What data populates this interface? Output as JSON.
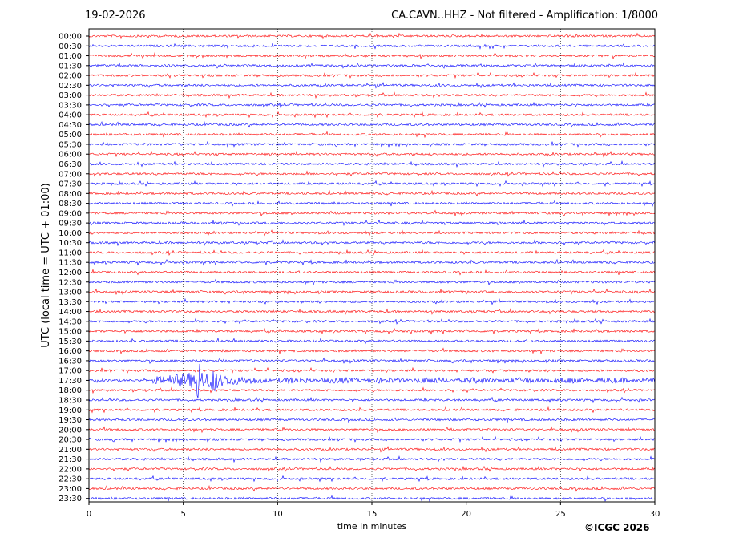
{
  "header": {
    "date": "19-02-2026",
    "title": "CA.CAVN..HHZ - Not filtered - Amplification: 1/8000"
  },
  "footer": {
    "copyright": "©ICGC 2026"
  },
  "chart_data": {
    "type": "line",
    "title": "CA.CAVN..HHZ - Not filtered - Amplification: 1/8000",
    "xlabel": "time in minutes",
    "ylabel": "UTC (local time = UTC + 01:00)",
    "xlim": [
      0,
      30
    ],
    "xticks": [
      0,
      5,
      10,
      15,
      20,
      25,
      30
    ],
    "vertical_gridlines": [
      5,
      10,
      15,
      20,
      25
    ],
    "rows": [
      "00:00",
      "00:30",
      "01:00",
      "01:30",
      "02:00",
      "02:30",
      "03:00",
      "03:30",
      "04:00",
      "04:30",
      "05:00",
      "05:30",
      "06:00",
      "06:30",
      "07:00",
      "07:30",
      "08:00",
      "08:30",
      "09:00",
      "09:30",
      "10:00",
      "10:30",
      "11:00",
      "11:30",
      "12:00",
      "12:30",
      "13:00",
      "13:30",
      "14:00",
      "14:30",
      "15:00",
      "15:30",
      "16:00",
      "16:30",
      "17:00",
      "17:30",
      "18:00",
      "18:30",
      "19:00",
      "19:30",
      "20:00",
      "20:30",
      "21:00",
      "21:30",
      "22:00",
      "22:30",
      "23:00",
      "23:30"
    ],
    "trace_colors": [
      "#ff0000",
      "#0000ff"
    ],
    "events": [
      {
        "row": "17:30",
        "start_min": 3.5,
        "peak_min": 5.8,
        "secondary_peak_min": 6.6,
        "end_min": 8.8
      }
    ],
    "legend": "none"
  }
}
